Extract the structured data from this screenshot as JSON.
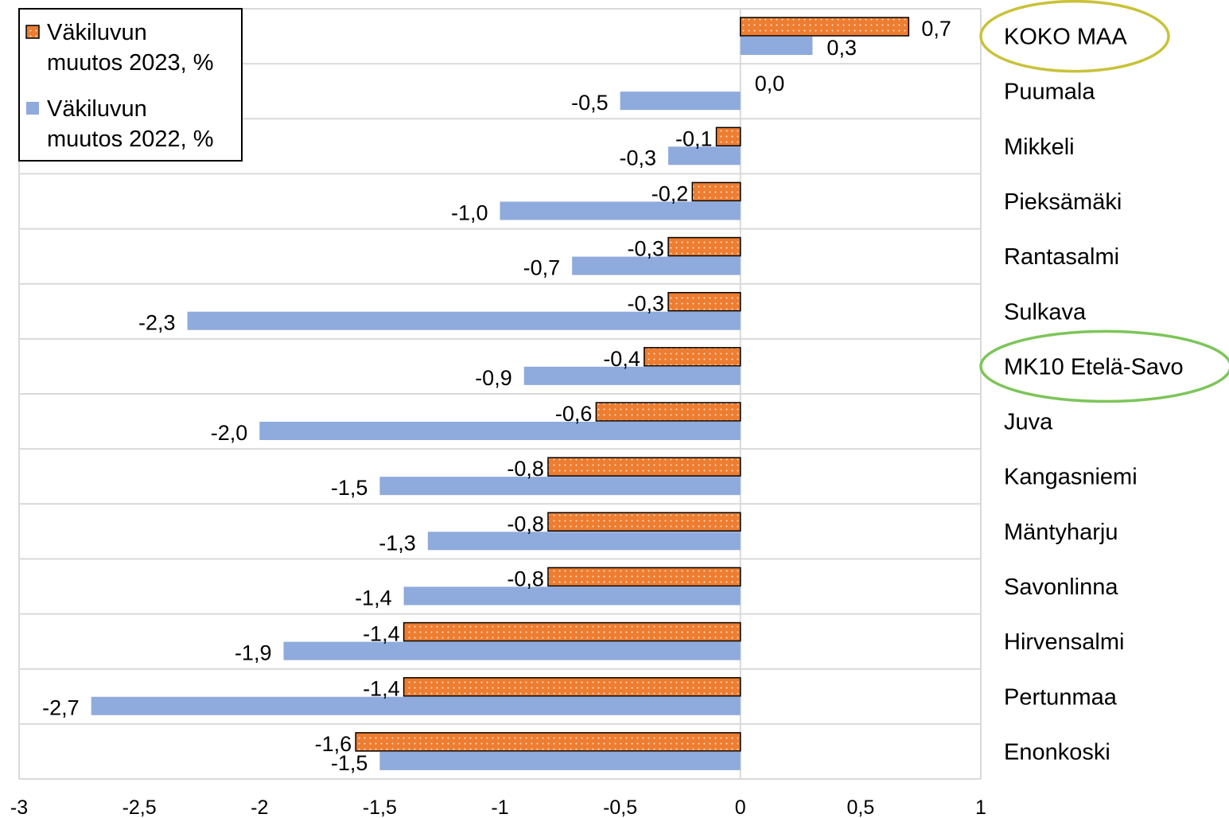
{
  "colors": {
    "series_2023": "#ED7D31",
    "series_2023_dots": "#FFE3CC",
    "series_2022": "#8FAADC",
    "grid": "#D9D9D9",
    "highlight_koko_maa": "#C9C23A",
    "highlight_mk10": "#7DC55A"
  },
  "chart_data": {
    "type": "bar",
    "orientation": "horizontal",
    "categories": [
      "KOKO MAA",
      "Puumala",
      "Mikkeli",
      "Pieksämäki",
      "Rantasalmi",
      "Sulkava",
      "MK10 Etelä-Savo",
      "Juva",
      "Kangasniemi",
      "Mäntyharju",
      "Savonlinna",
      "Hirvensalmi",
      "Pertunmaa",
      "Enonkoski"
    ],
    "series": [
      {
        "name": "Väkiluvun muutos 2023, %",
        "legend_lines": [
          "Väkiluvun",
          "muutos 2023, %"
        ],
        "values": [
          0.7,
          0.0,
          -0.1,
          -0.2,
          -0.3,
          -0.3,
          -0.4,
          -0.6,
          -0.8,
          -0.8,
          -0.8,
          -1.4,
          -1.4,
          -1.6
        ],
        "labels": [
          "0,7",
          "0,0",
          "-0,1",
          "-0,2",
          "-0,3",
          "-0,3",
          "-0,4",
          "-0,6",
          "-0,8",
          "-0,8",
          "-0,8",
          "-1,4",
          "-1,4",
          "-1,6"
        ]
      },
      {
        "name": "Väkiluvun muutos 2022, %",
        "legend_lines": [
          "Väkiluvun",
          "muutos 2022, %"
        ],
        "values": [
          0.3,
          -0.5,
          -0.3,
          -1.0,
          -0.7,
          -2.3,
          -0.9,
          -2.0,
          -1.5,
          -1.3,
          -1.4,
          -1.9,
          -2.7,
          -1.5
        ],
        "labels": [
          "0,3",
          "-0,5",
          "-0,3",
          "-1,0",
          "-0,7",
          "-2,3",
          "-0,9",
          "-2,0",
          "-1,5",
          "-1,3",
          "-1,4",
          "-1,9",
          "-2,7",
          "-1,5"
        ]
      }
    ],
    "xlim": [
      -3,
      1
    ],
    "xticks": [
      -3,
      -2.5,
      -2,
      -1.5,
      -1,
      -0.5,
      0,
      0.5,
      1
    ],
    "xtick_labels": [
      "-3",
      "-2,5",
      "-2",
      "-1,5",
      "-1",
      "-0,5",
      "0",
      "0,5",
      "1"
    ],
    "grid": true,
    "legend_position": "top-left",
    "highlighted_categories": [
      "KOKO MAA",
      "MK10 Etelä-Savo"
    ]
  }
}
